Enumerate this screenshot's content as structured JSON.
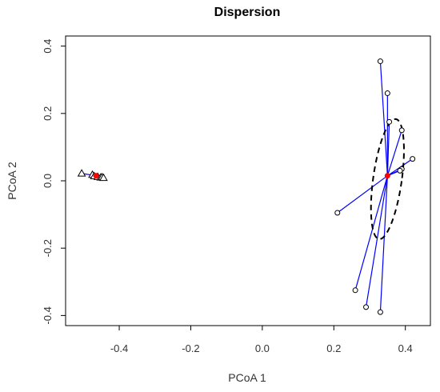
{
  "chart_data": {
    "type": "scatter",
    "title": "Dispersion",
    "xlabel": "PCoA 1",
    "ylabel": "PCoA 2",
    "xlim": [
      -0.55,
      0.47
    ],
    "ylim": [
      -0.43,
      0.43
    ],
    "x_ticks": [
      -0.4,
      -0.2,
      0.0,
      0.2,
      0.4
    ],
    "x_tick_labels": [
      "-0.4",
      "-0.2",
      "0.0",
      "0.2",
      "0.4"
    ],
    "y_ticks": [
      -0.4,
      -0.2,
      0.0,
      0.2,
      0.4
    ],
    "y_tick_labels": [
      "-0.4",
      "-0.2",
      "0.0",
      "0.2",
      "0.4"
    ],
    "grid": false,
    "groups": [
      {
        "marker": "triangle",
        "color": "#000000",
        "line_color": "#0000ff",
        "centroid": {
          "x": -0.465,
          "y": 0.015
        },
        "points": [
          {
            "x": -0.505,
            "y": 0.022
          },
          {
            "x": -0.475,
            "y": 0.018
          },
          {
            "x": -0.47,
            "y": 0.014
          },
          {
            "x": -0.46,
            "y": 0.012
          },
          {
            "x": -0.452,
            "y": 0.01
          },
          {
            "x": -0.448,
            "y": 0.011
          },
          {
            "x": -0.444,
            "y": 0.009
          }
        ]
      },
      {
        "marker": "circle",
        "color": "#000000",
        "line_color": "#0000ff",
        "centroid": {
          "x": 0.35,
          "y": 0.015
        },
        "ellipse": {
          "cx": 0.35,
          "cy": 0.005,
          "rx": 0.04,
          "ry": 0.18,
          "tilt_deg": 8
        },
        "points": [
          {
            "x": 0.33,
            "y": 0.355
          },
          {
            "x": 0.35,
            "y": 0.26
          },
          {
            "x": 0.355,
            "y": 0.175
          },
          {
            "x": 0.39,
            "y": 0.15
          },
          {
            "x": 0.42,
            "y": 0.065
          },
          {
            "x": 0.39,
            "y": 0.035
          },
          {
            "x": 0.385,
            "y": 0.03
          },
          {
            "x": 0.21,
            "y": -0.095
          },
          {
            "x": 0.26,
            "y": -0.325
          },
          {
            "x": 0.29,
            "y": -0.375
          },
          {
            "x": 0.33,
            "y": -0.39
          }
        ]
      }
    ],
    "centroid_color": "#ff0000"
  }
}
